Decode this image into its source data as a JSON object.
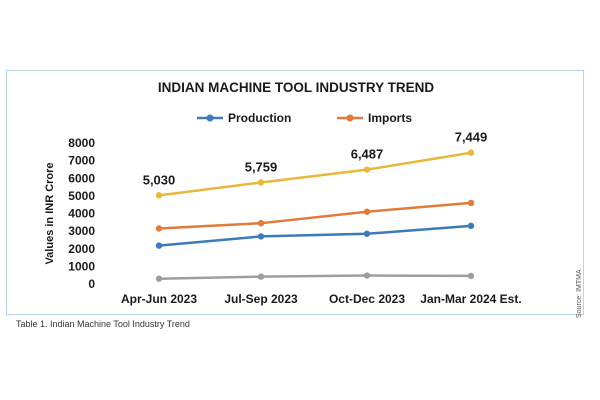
{
  "chart_data": {
    "type": "line",
    "title": "INDIAN MACHINE TOOL INDUSTRY TREND",
    "ylabel": "Values in INR Crore",
    "xlabel": "",
    "categories": [
      "Apr-Jun 2023",
      "Jul-Sep 2023",
      "Oct-Dec 2023",
      "Jan-Mar 2024 Est."
    ],
    "ylim": [
      0,
      8000
    ],
    "yticks": [
      "0",
      "1000",
      "2000",
      "3000",
      "4000",
      "5000",
      "6000",
      "7000",
      "8000"
    ],
    "grid": false,
    "legend_position": "top",
    "series": [
      {
        "name": "Production",
        "color": "#3d7ab8",
        "values": [
          2180,
          2700,
          2850,
          3300
        ]
      },
      {
        "name": "Imports",
        "color": "#e07b3a",
        "values": [
          3150,
          3450,
          4100,
          4600
        ]
      },
      {
        "color": "#9e9e9e",
        "values": [
          300,
          420,
          480,
          460
        ]
      },
      {
        "color": "#e8b83a",
        "values": [
          5030,
          5759,
          6487,
          7449
        ],
        "labels": [
          "5,030",
          "5,759",
          "6,487",
          "7,449"
        ]
      }
    ]
  },
  "caption": "Table 1. Indian Machine Tool Industry Trend",
  "source": "Source: IMTMA"
}
